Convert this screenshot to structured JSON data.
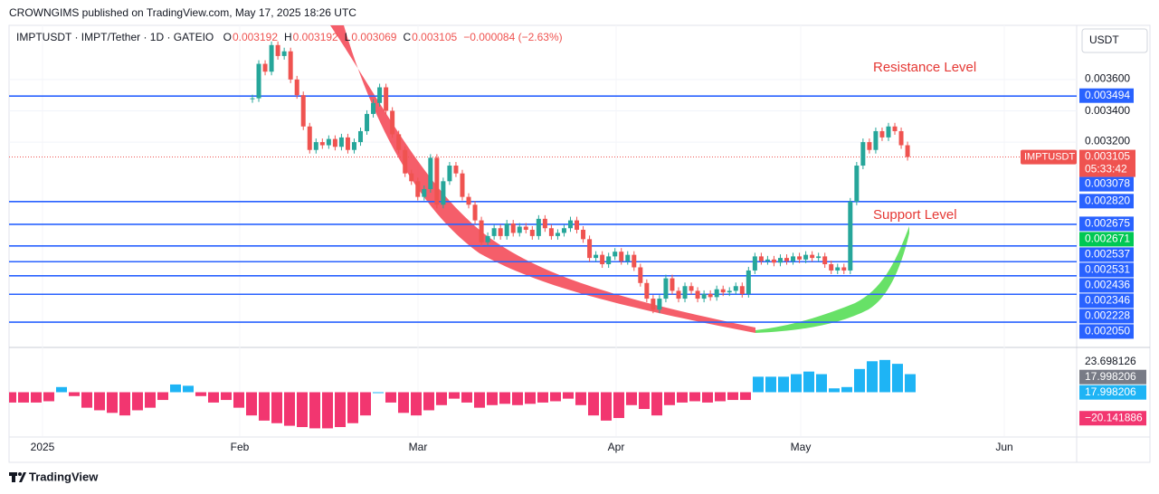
{
  "header": {
    "publisher": "CROWNGIMS published on TradingView.com, May 17, 2025 18:26 UTC"
  },
  "footer": {
    "brand": "TradingView"
  },
  "chart_data": {
    "type": "candlestick",
    "title": "IMPTUSDT · IMPT/Tether · 1D · GATEIO",
    "legend": [
      {
        "key": "O",
        "value": 0.003192
      },
      {
        "key": "H",
        "value": 0.003192
      },
      {
        "key": "L",
        "value": 0.003069
      },
      {
        "key": "C",
        "value": 0.003105
      }
    ],
    "change": "−0.000084 (−2.63%)",
    "currency": "USDT",
    "up_color": "#26a69a",
    "down_color": "#ef5350",
    "close": [
      0.00348,
      0.0037,
      0.00365,
      0.00382,
      0.00375,
      0.00378,
      0.0036,
      0.0035,
      0.0033,
      0.00315,
      0.0032,
      0.00318,
      0.00322,
      0.00317,
      0.00323,
      0.00315,
      0.0032,
      0.00327,
      0.00338,
      0.00345,
      0.00355,
      0.0034,
      0.00325,
      0.00315,
      0.003,
      0.00295,
      0.00285,
      0.0029,
      0.0031,
      0.0028,
      0.00295,
      0.00305,
      0.003,
      0.00285,
      0.0028,
      0.0027,
      0.00256,
      0.0026,
      0.00265,
      0.0026,
      0.00268,
      0.00262,
      0.00266,
      0.00264,
      0.0026,
      0.00271,
      0.00265,
      0.0026,
      0.00262,
      0.00265,
      0.0027,
      0.00264,
      0.00258,
      0.00246,
      0.00248,
      0.00242,
      0.00247,
      0.0025,
      0.00244,
      0.00248,
      0.0024,
      0.0023,
      0.0022,
      0.00213,
      0.0022,
      0.00233,
      0.00225,
      0.0022,
      0.00228,
      0.00225,
      0.0022,
      0.00223,
      0.00221,
      0.00226,
      0.00224,
      0.00225,
      0.00228,
      0.00223,
      0.00238,
      0.00247,
      0.00244,
      0.00245,
      0.00243,
      0.00246,
      0.00244,
      0.00247,
      0.00245,
      0.00248,
      0.00246,
      0.00247,
      0.00242,
      0.00238,
      0.0024,
      0.00238,
      0.00282,
      0.00305,
      0.0032,
      0.00315,
      0.00327,
      0.00323,
      0.0033,
      0.00327,
      0.00318,
      0.003105
    ],
    "ylim": [
      0.0019,
      0.003946
    ],
    "yticks": [
      {
        "value": 0.0036,
        "label": "0.003600"
      },
      {
        "value": 0.0034,
        "label": "0.003400"
      },
      {
        "value": 0.0032,
        "label": "0.003200"
      }
    ],
    "level_color": "#2962ff",
    "levels": [
      {
        "value": 0.003494,
        "label": "0.003494"
      },
      {
        "value": 0.00282,
        "label": "0.002820"
      },
      {
        "value": 0.002675,
        "label": "0.002675"
      },
      {
        "value": 0.002537,
        "label": "0.002537"
      },
      {
        "value": 0.002436,
        "label": "0.002436"
      },
      {
        "value": 0.002346,
        "label": "0.002346"
      },
      {
        "value": 0.002228,
        "label": "0.002228"
      },
      {
        "value": 0.00205,
        "label": "0.002050"
      }
    ],
    "markers": [
      {
        "value": 0.003078,
        "label": "0.003078",
        "color": "#2962ff"
      },
      {
        "value": 0.002671,
        "label": "0.002671",
        "color": "#00c853"
      },
      {
        "value": 0.002531,
        "label": "0.002531",
        "color": "#2962ff"
      }
    ],
    "last_price": {
      "symbol": "IMPTUSDT",
      "value": 0.003105,
      "countdown": "05:33:42",
      "color": "#ef5350"
    },
    "annotations": [
      {
        "text": "Resistance Level",
        "color": "#e53935"
      },
      {
        "text": "Support Level",
        "color": "#e53935"
      }
    ],
    "x_labels": [
      "2025",
      "Feb",
      "Mar",
      "Apr",
      "May",
      "Jun"
    ],
    "oscillator": {
      "values": [
        -8,
        -8,
        -8,
        -7,
        4,
        -3,
        -12,
        -14,
        -16,
        -18,
        -14,
        -12,
        -6,
        6,
        5,
        -3,
        -8,
        -6,
        -12,
        -18,
        -22,
        -24,
        -26,
        -27,
        -28,
        -28,
        -27,
        -24,
        -18,
        0,
        -8,
        -16,
        -18,
        -14,
        -10,
        -5,
        -8,
        -12,
        -10,
        -9,
        -10,
        -9,
        -8,
        -7,
        -5,
        -10,
        -18,
        -22,
        -20,
        -10,
        -13,
        -18,
        -10,
        -8,
        -7,
        -8,
        -7,
        -6,
        -6,
        12,
        12,
        12,
        14,
        16,
        14,
        3,
        4,
        18,
        24,
        25,
        22,
        14
      ],
      "ylim": [
        -34,
        34
      ],
      "pos_color": "#1eb4f5",
      "neg_color": "#f23670",
      "labels": [
        {
          "value": 23.698126,
          "label": "23.698126",
          "color": null
        },
        {
          "value": 17.998206,
          "label": "17.998206",
          "color": "#787b86"
        },
        {
          "value": 17.998206,
          "label": "17.998206",
          "color": "#1eb4f5"
        },
        {
          "value": -20.141886,
          "label": "−20.141886",
          "color": "#f23670"
        }
      ]
    }
  }
}
